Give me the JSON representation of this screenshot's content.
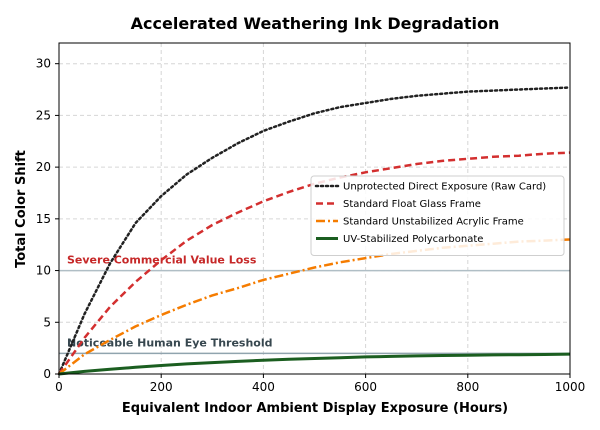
{
  "chart_data": {
    "type": "line",
    "title": "Accelerated Weathering Ink Degradation",
    "xlabel": "Equivalent Indoor Ambient Display Exposure (Hours)",
    "ylabel": "Total Color Shift",
    "xlim": [
      0,
      1000
    ],
    "ylim": [
      0,
      32
    ],
    "xticks": [
      0,
      200,
      400,
      600,
      800,
      1000
    ],
    "yticks": [
      0,
      5,
      10,
      15,
      20,
      25,
      30
    ],
    "grid": true,
    "legend_position": "center-right",
    "x": [
      0,
      50,
      100,
      150,
      200,
      250,
      300,
      350,
      400,
      450,
      500,
      550,
      600,
      650,
      700,
      750,
      800,
      850,
      900,
      950,
      1000
    ],
    "series": [
      {
        "name": "Unprotected Direct Exposure (Raw Card)",
        "color": "#222222",
        "style": "dotted",
        "values": [
          0,
          5.8,
          10.7,
          14.6,
          17.2,
          19.3,
          20.9,
          22.3,
          23.5,
          24.4,
          25.2,
          25.8,
          26.2,
          26.6,
          26.9,
          27.1,
          27.3,
          27.4,
          27.5,
          27.6,
          27.7
        ]
      },
      {
        "name": "Standard Float Glass Frame",
        "color": "#d32f2f",
        "style": "dashed",
        "values": [
          0,
          3.5,
          6.5,
          8.9,
          11.0,
          12.9,
          14.4,
          15.6,
          16.7,
          17.6,
          18.4,
          19.0,
          19.5,
          19.9,
          20.3,
          20.6,
          20.8,
          21.0,
          21.1,
          21.3,
          21.4
        ]
      },
      {
        "name": "Standard Unstabilized Acrylic Frame",
        "color": "#f57c00",
        "style": "dashdot",
        "values": [
          0,
          1.9,
          3.3,
          4.6,
          5.7,
          6.7,
          7.6,
          8.3,
          9.1,
          9.7,
          10.3,
          10.8,
          11.2,
          11.6,
          11.9,
          12.2,
          12.4,
          12.6,
          12.8,
          12.9,
          13.0
        ]
      },
      {
        "name": "UV-Stabilized Polycarbonate",
        "color": "#1b5e20",
        "style": "solid",
        "values": [
          0,
          0.25,
          0.45,
          0.65,
          0.82,
          0.98,
          1.1,
          1.22,
          1.33,
          1.42,
          1.5,
          1.58,
          1.65,
          1.7,
          1.75,
          1.79,
          1.82,
          1.85,
          1.87,
          1.89,
          1.92
        ]
      }
    ],
    "reference_lines": [
      {
        "label": "Severe Commercial Value Loss",
        "y": 10,
        "line_color": "#b0bec5",
        "text_color": "#c62828"
      },
      {
        "label": "Noticeable Human Eye Threshold",
        "y": 2,
        "line_color": "#90a4ae",
        "text_color": "#37474f"
      }
    ]
  }
}
